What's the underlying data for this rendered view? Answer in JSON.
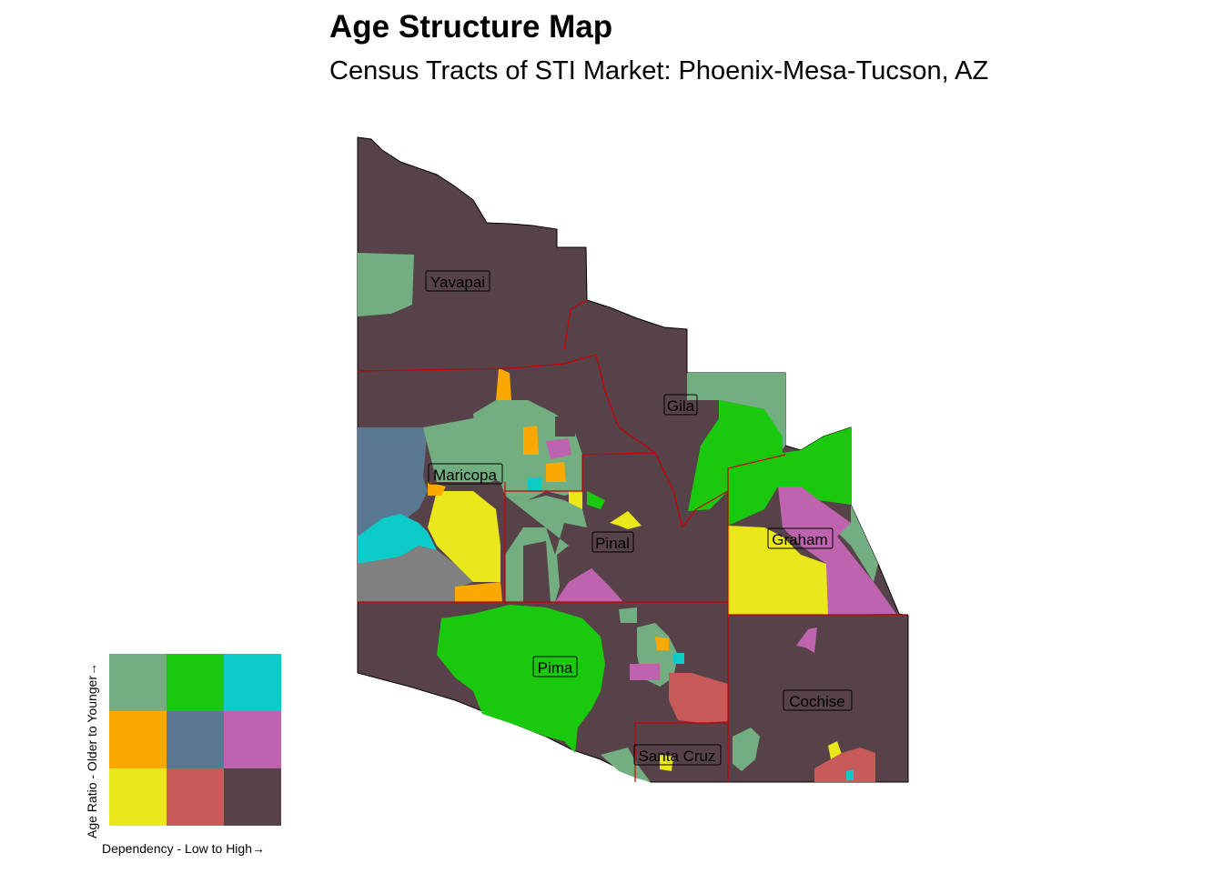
{
  "title": "Age Structure Map",
  "subtitle": "Census Tracts of STI Market: Phoenix-Mesa-Tucson, AZ",
  "counties": [
    {
      "name": "Yavapai"
    },
    {
      "name": "Gila"
    },
    {
      "name": "Maricopa"
    },
    {
      "name": "Pinal"
    },
    {
      "name": "Graham"
    },
    {
      "name": "Pima"
    },
    {
      "name": "Cochise"
    },
    {
      "name": "Santa Cruz"
    }
  ],
  "legend": {
    "x_label": "Dependency - Low to High→",
    "y_label": "Age Ratio - Older to Younger→",
    "grid": [
      [
        "#73ae80",
        "#1ac90e",
        "#0ccbc9"
      ],
      [
        "#fba901",
        "#5a7891",
        "#be63ad"
      ],
      [
        "#eae71a",
        "#c85a5a",
        "#574249"
      ]
    ]
  },
  "colors": {
    "base": "#574249",
    "border": "#cc0000"
  }
}
